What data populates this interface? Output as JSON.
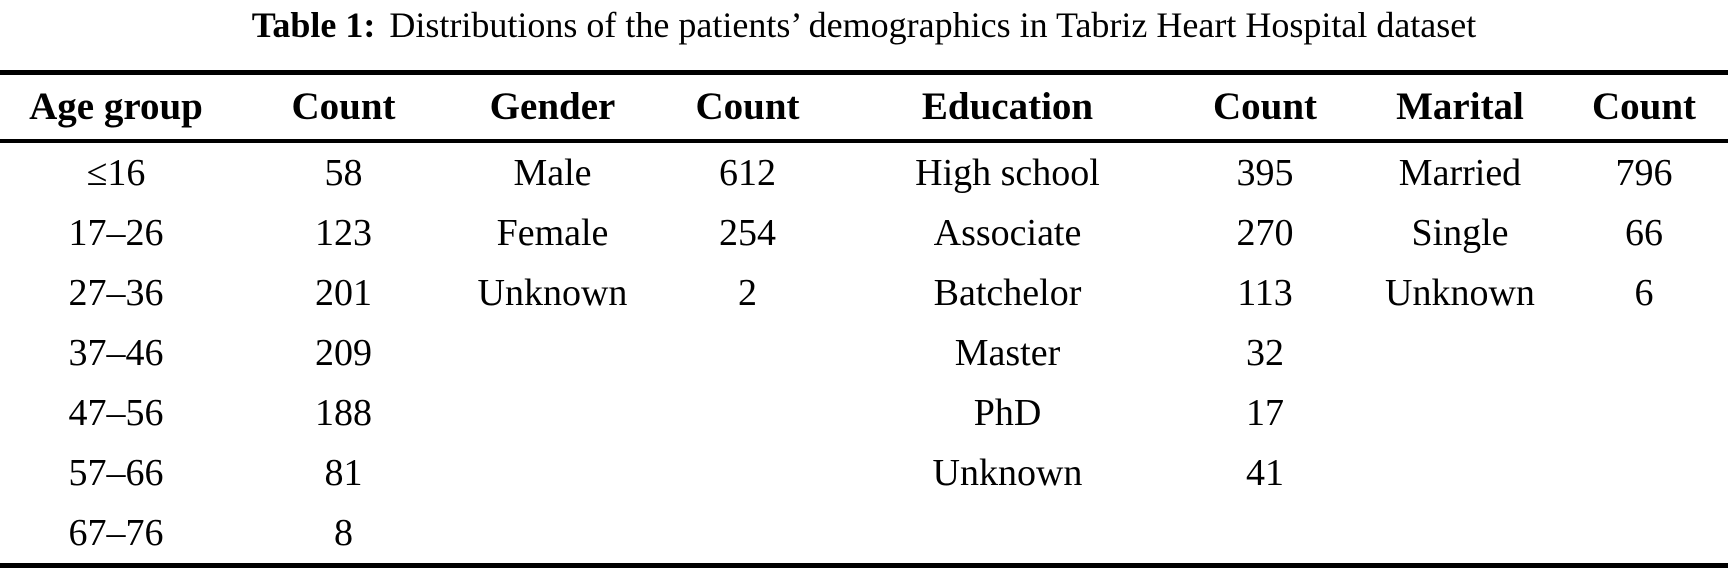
{
  "title": {
    "label": "Table 1:",
    "text": "Distributions of the patients’ demographics in Tabriz Heart Hospital dataset"
  },
  "table": {
    "headers": [
      "Age group",
      "Count",
      "Gender",
      "Count",
      "Education",
      "Count",
      "Marital",
      "Count"
    ],
    "rows": [
      [
        "≤16",
        "58",
        "Male",
        "612",
        "High school",
        "395",
        "Married",
        "796"
      ],
      [
        "17–26",
        "123",
        "Female",
        "254",
        "Associate",
        "270",
        "Single",
        "66"
      ],
      [
        "27–36",
        "201",
        "Unknown",
        "2",
        "Batchelor",
        "113",
        "Unknown",
        "6"
      ],
      [
        "37–46",
        "209",
        "",
        "",
        "Master",
        "32",
        "",
        ""
      ],
      [
        "47–56",
        "188",
        "",
        "",
        "PhD",
        "17",
        "",
        ""
      ],
      [
        "57–66",
        "81",
        "",
        "",
        "Unknown",
        "41",
        "",
        ""
      ],
      [
        "67–76",
        "8",
        "",
        "",
        "",
        "",
        "",
        ""
      ]
    ]
  }
}
